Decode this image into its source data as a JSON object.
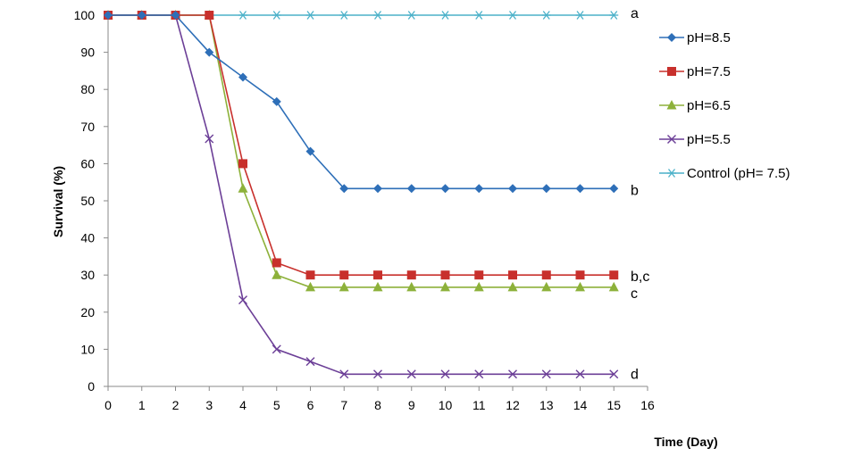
{
  "chart_data": {
    "type": "line",
    "xlabel": "Time (Day)",
    "ylabel": "Survival (%)",
    "xlim": [
      0,
      16
    ],
    "ylim": [
      0,
      100
    ],
    "xticks": [
      "0",
      "1",
      "2",
      "3",
      "4",
      "5",
      "6",
      "7",
      "8",
      "9",
      "10",
      "11",
      "12",
      "13",
      "14",
      "15",
      "16"
    ],
    "yticks": [
      "0",
      "10",
      "20",
      "30",
      "40",
      "50",
      "60",
      "70",
      "80",
      "90",
      "100"
    ],
    "grid": false,
    "legend_position": "right",
    "x": [
      0,
      1,
      2,
      3,
      4,
      5,
      6,
      7,
      8,
      9,
      10,
      11,
      12,
      13,
      14,
      15
    ],
    "series": [
      {
        "name": "pH=8.5",
        "color": "#2e6fb8",
        "marker": "diamond",
        "values": [
          100,
          100,
          100,
          90,
          83.3,
          76.7,
          63.3,
          53.3,
          53.3,
          53.3,
          53.3,
          53.3,
          53.3,
          53.3,
          53.3,
          53.3
        ]
      },
      {
        "name": "pH=7.5",
        "color": "#c8302c",
        "marker": "square",
        "values": [
          100,
          100,
          100,
          100,
          60,
          33.3,
          30,
          30,
          30,
          30,
          30,
          30,
          30,
          30,
          30,
          30
        ]
      },
      {
        "name": "pH=6.5",
        "color": "#8db13a",
        "marker": "triangle",
        "values": [
          100,
          100,
          100,
          100,
          53.3,
          30,
          26.7,
          26.7,
          26.7,
          26.7,
          26.7,
          26.7,
          26.7,
          26.7,
          26.7,
          26.7
        ]
      },
      {
        "name": "pH=5.5",
        "color": "#6c3f97",
        "marker": "x",
        "values": [
          100,
          100,
          100,
          66.7,
          23.3,
          10,
          6.7,
          3.3,
          3.3,
          3.3,
          3.3,
          3.3,
          3.3,
          3.3,
          3.3,
          3.3
        ]
      },
      {
        "name": "Control (pH= 7.5)",
        "color": "#4bb1c9",
        "marker": "star",
        "values": [
          100,
          100,
          100,
          100,
          100,
          100,
          100,
          100,
          100,
          100,
          100,
          100,
          100,
          100,
          100,
          100
        ]
      }
    ],
    "annotations": [
      {
        "text": "a",
        "series": "Control (pH= 7.5)"
      },
      {
        "text": "b",
        "series": "pH=8.5"
      },
      {
        "text": "b,c",
        "series": "pH=7.5"
      },
      {
        "text": "c",
        "series": "pH=6.5"
      },
      {
        "text": "d",
        "series": "pH=5.5"
      }
    ]
  }
}
